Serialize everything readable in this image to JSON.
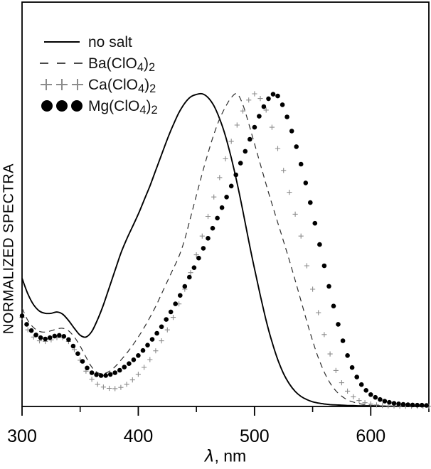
{
  "figure": {
    "kind": "spectra-plot",
    "background": "#ffffff"
  },
  "axes": {
    "x": {
      "label_symbol": "λ",
      "label_rest": ", nm",
      "min": 300,
      "max": 650,
      "major_ticks": [
        300,
        400,
        500,
        600
      ],
      "minor_ticks": [
        350,
        450,
        550,
        650
      ]
    },
    "y": {
      "label": "NORMALIZED SPECTRA",
      "min": 0,
      "max": 1.05,
      "ticks": []
    }
  },
  "legend": {
    "items": [
      {
        "id": "no-salt",
        "t1": "no salt",
        "s1": "",
        "t2": "",
        "s2": "",
        "sample": "solid-line"
      },
      {
        "id": "ba-clo4",
        "t1": "Ba(ClO",
        "s1": "4",
        "t2": ")",
        "s2": "2",
        "sample": "dashed-line"
      },
      {
        "id": "ca-clo4",
        "t1": "Ca(ClO",
        "s1": "4",
        "t2": ")",
        "s2": "2",
        "sample": "plus-markers"
      },
      {
        "id": "mg-clo4",
        "t1": "Mg(ClO",
        "s1": "4",
        "t2": ")",
        "s2": "2",
        "sample": "dot-markers"
      }
    ]
  },
  "chart_data": {
    "type": "line",
    "title": "",
    "xlabel": "λ, nm",
    "ylabel": "NORMALIZED SPECTRA",
    "xlim": [
      300,
      650
    ],
    "ylim": [
      0,
      1.05
    ],
    "grid": false,
    "legend_position": "top-left-inside",
    "x": [
      300,
      305,
      310,
      315,
      320,
      325,
      330,
      335,
      340,
      345,
      350,
      355,
      360,
      365,
      370,
      375,
      380,
      385,
      390,
      395,
      400,
      405,
      410,
      415,
      420,
      425,
      430,
      435,
      440,
      445,
      450,
      455,
      460,
      465,
      470,
      475,
      480,
      485,
      490,
      495,
      500,
      505,
      510,
      515,
      520,
      525,
      530,
      535,
      540,
      545,
      550,
      555,
      560,
      565,
      570,
      575,
      580,
      585,
      590,
      595,
      600,
      605,
      610,
      615,
      620,
      625,
      630,
      635,
      640,
      645,
      650
    ],
    "series": [
      {
        "name": "no salt",
        "style": "solid",
        "color": "#000000",
        "peak_nm": 455,
        "values": [
          0.41,
          0.36,
          0.325,
          0.305,
          0.298,
          0.298,
          0.302,
          0.295,
          0.275,
          0.25,
          0.228,
          0.222,
          0.24,
          0.278,
          0.325,
          0.38,
          0.435,
          0.49,
          0.535,
          0.575,
          0.615,
          0.66,
          0.705,
          0.755,
          0.805,
          0.855,
          0.9,
          0.94,
          0.97,
          0.99,
          0.998,
          1.0,
          0.988,
          0.962,
          0.92,
          0.865,
          0.795,
          0.715,
          0.625,
          0.53,
          0.44,
          0.355,
          0.275,
          0.207,
          0.15,
          0.105,
          0.072,
          0.048,
          0.032,
          0.022,
          0.015,
          0.011,
          0.008,
          0.006,
          0.005,
          0.004,
          0.003,
          0.003,
          0.002,
          0.002,
          0.002,
          0.002,
          0.001,
          0.001,
          0.001,
          0.001,
          0.001,
          0.001,
          0.001,
          0.001,
          0.001
        ]
      },
      {
        "name": "Ba(ClO4)2",
        "style": "dashed",
        "color": "#2e2e2e",
        "peak_nm": 483,
        "values": [
          0.315,
          0.275,
          0.252,
          0.24,
          0.238,
          0.242,
          0.248,
          0.25,
          0.242,
          0.222,
          0.193,
          0.158,
          0.126,
          0.108,
          0.105,
          0.112,
          0.127,
          0.148,
          0.17,
          0.195,
          0.222,
          0.252,
          0.285,
          0.32,
          0.36,
          0.4,
          0.44,
          0.48,
          0.535,
          0.605,
          0.675,
          0.745,
          0.81,
          0.87,
          0.92,
          0.958,
          0.988,
          1.0,
          0.965,
          0.905,
          0.84,
          0.775,
          0.71,
          0.648,
          0.588,
          0.528,
          0.467,
          0.403,
          0.338,
          0.272,
          0.21,
          0.155,
          0.11,
          0.075,
          0.05,
          0.033,
          0.021,
          0.014,
          0.009,
          0.006,
          0.004,
          0.003,
          0.002,
          0.002,
          0.001,
          0.001,
          0.001,
          0.001,
          0.001,
          0.001,
          0.001
        ]
      },
      {
        "name": "Ca(ClO4)2",
        "style": "plus-markers",
        "color": "#8c8c8c",
        "peak_nm": 500,
        "values": [
          0.285,
          0.245,
          0.222,
          0.21,
          0.208,
          0.213,
          0.22,
          0.22,
          0.208,
          0.182,
          0.148,
          0.113,
          0.087,
          0.071,
          0.062,
          0.058,
          0.057,
          0.061,
          0.071,
          0.085,
          0.103,
          0.125,
          0.15,
          0.178,
          0.21,
          0.245,
          0.285,
          0.328,
          0.375,
          0.428,
          0.485,
          0.545,
          0.608,
          0.67,
          0.732,
          0.792,
          0.848,
          0.9,
          0.945,
          0.98,
          1.0,
          0.985,
          0.948,
          0.893,
          0.825,
          0.755,
          0.685,
          0.615,
          0.545,
          0.45,
          0.375,
          0.3,
          0.23,
          0.168,
          0.115,
          0.076,
          0.049,
          0.031,
          0.019,
          0.012,
          0.008,
          0.005,
          0.003,
          0.002,
          0.002,
          0.001,
          0.001,
          0.001,
          0.001,
          0.001,
          0.001
        ]
      },
      {
        "name": "Mg(ClO4)2",
        "style": "dot-markers",
        "color": "#000000",
        "peak_nm": 514,
        "values": [
          0.29,
          0.256,
          0.234,
          0.221,
          0.216,
          0.221,
          0.228,
          0.227,
          0.214,
          0.188,
          0.156,
          0.127,
          0.108,
          0.1,
          0.098,
          0.101,
          0.108,
          0.118,
          0.131,
          0.146,
          0.163,
          0.183,
          0.205,
          0.229,
          0.255,
          0.284,
          0.315,
          0.348,
          0.384,
          0.421,
          0.459,
          0.498,
          0.538,
          0.578,
          0.619,
          0.661,
          0.705,
          0.75,
          0.797,
          0.845,
          0.893,
          0.937,
          0.974,
          1.0,
          0.993,
          0.958,
          0.905,
          0.845,
          0.775,
          0.7,
          0.62,
          0.535,
          0.45,
          0.368,
          0.29,
          0.222,
          0.163,
          0.115,
          0.08,
          0.055,
          0.038,
          0.027,
          0.019,
          0.014,
          0.01,
          0.008,
          0.006,
          0.005,
          0.004,
          0.004,
          0.003
        ]
      }
    ]
  }
}
